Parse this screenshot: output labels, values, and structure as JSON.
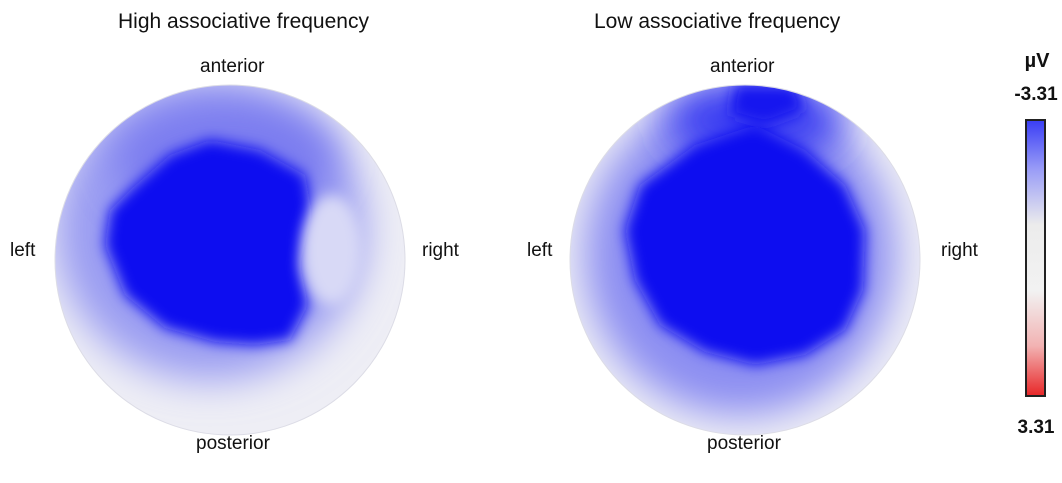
{
  "chart_data": [
    {
      "type": "heatmap",
      "title": "High associative frequency",
      "labels": {
        "top": "anterior",
        "bottom": "posterior",
        "left": "left",
        "right": "right"
      }
    },
    {
      "type": "heatmap",
      "title": "Low associative frequency",
      "labels": {
        "top": "anterior",
        "bottom": "posterior",
        "left": "left",
        "right": "right"
      }
    }
  ],
  "colorbar": {
    "unit": "µV",
    "min_label": "-3.31",
    "max_label": "3.31",
    "negative_color": "#0000ff",
    "neutral_color": "#f0f0f0",
    "positive_color": "#e8292a"
  }
}
